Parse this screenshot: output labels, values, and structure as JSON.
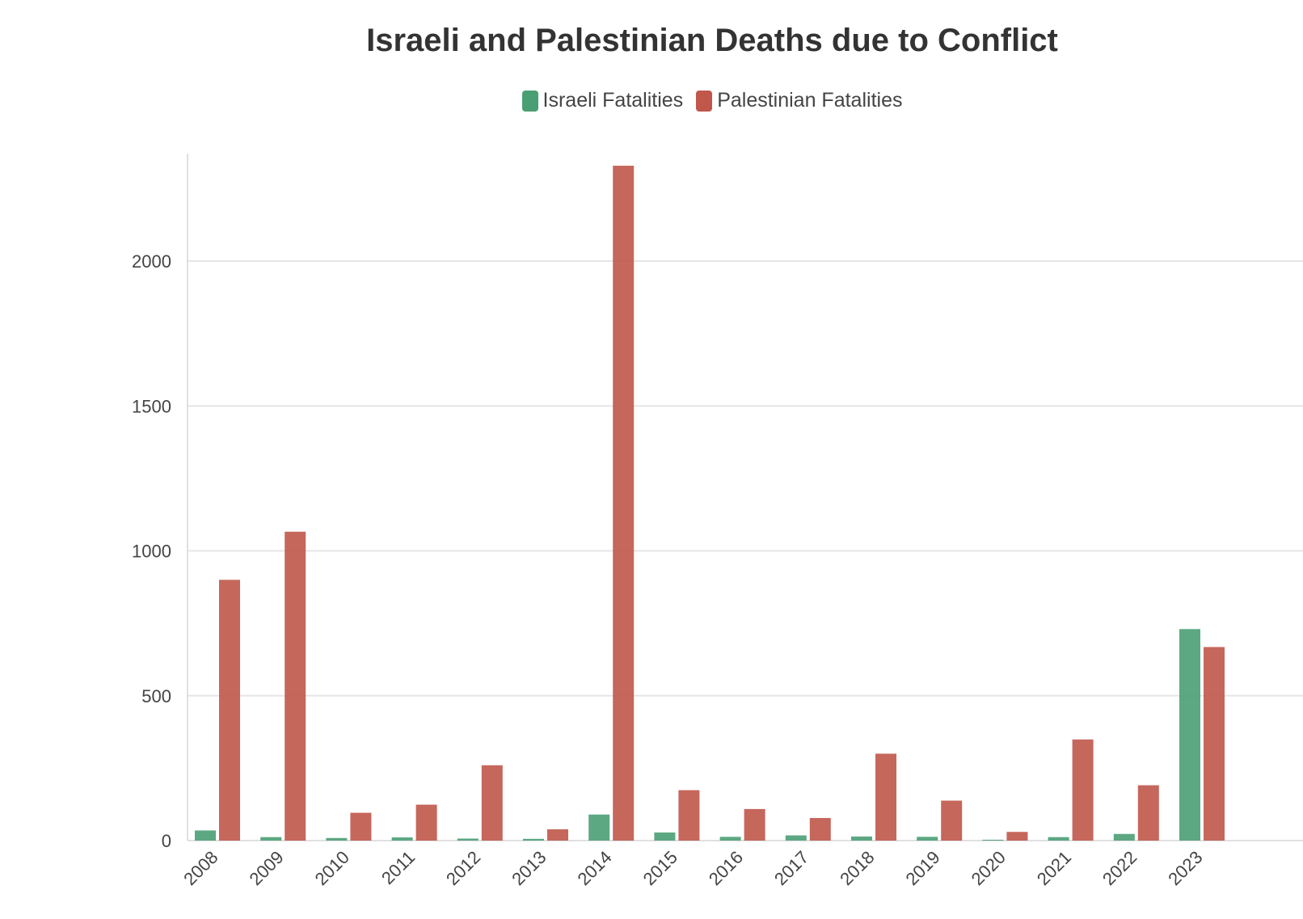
{
  "chart_data": {
    "type": "bar",
    "title": "Israeli and Palestinian Deaths due to Conflict",
    "categories": [
      "2008",
      "2009",
      "2010",
      "2011",
      "2012",
      "2013",
      "2014",
      "2015",
      "2016",
      "2017",
      "2018",
      "2019",
      "2020",
      "2021",
      "2022",
      "2023"
    ],
    "series": [
      {
        "name": "Israeli Fatalities",
        "color": "#4a9e74",
        "values": [
          35,
          12,
          9,
          11,
          7,
          6,
          90,
          28,
          13,
          18,
          14,
          13,
          3,
          12,
          23,
          730
        ]
      },
      {
        "name": "Palestinian Fatalities",
        "color": "#c0574a",
        "values": [
          900,
          1066,
          96,
          124,
          260,
          39,
          2329,
          174,
          109,
          78,
          300,
          138,
          30,
          349,
          191,
          668
        ]
      }
    ],
    "yticks": [
      "0",
      "500",
      "1000",
      "1500",
      "2000"
    ],
    "ylim": [
      0,
      2400
    ],
    "grid": true,
    "legend_position": "top-center"
  }
}
